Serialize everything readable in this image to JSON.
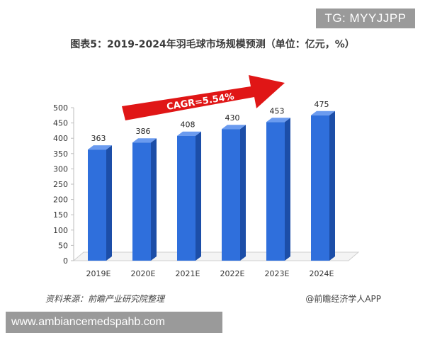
{
  "watermark_badge": "TG: MYYJJPP",
  "url_banner": "www.ambiancemedspahb.com",
  "source_note": "资料来源：前瞻产业研究院整理",
  "brand_note": "@前瞻经济学人APP",
  "colors": {
    "bar_front": "#2f6fdc",
    "bar_side": "#1c4ea8",
    "bar_top": "#6b9bef",
    "arrow": "#e01616",
    "badge_bg": "#9a9a9a"
  },
  "chart_data": {
    "type": "bar",
    "title": "图表5：2019-2024年羽毛球市场规模预测（单位：亿元，%）",
    "categories": [
      "2019E",
      "2020E",
      "2021E",
      "2022E",
      "2023E",
      "2024E"
    ],
    "values": [
      363,
      386,
      408,
      430,
      453,
      475
    ],
    "ylim": [
      0,
      500
    ],
    "y_ticks": [
      0,
      50,
      100,
      150,
      200,
      250,
      300,
      350,
      400,
      450,
      500
    ],
    "xlabel": "",
    "ylabel": "",
    "grid": false,
    "annotation": "CAGR=5.54%"
  }
}
